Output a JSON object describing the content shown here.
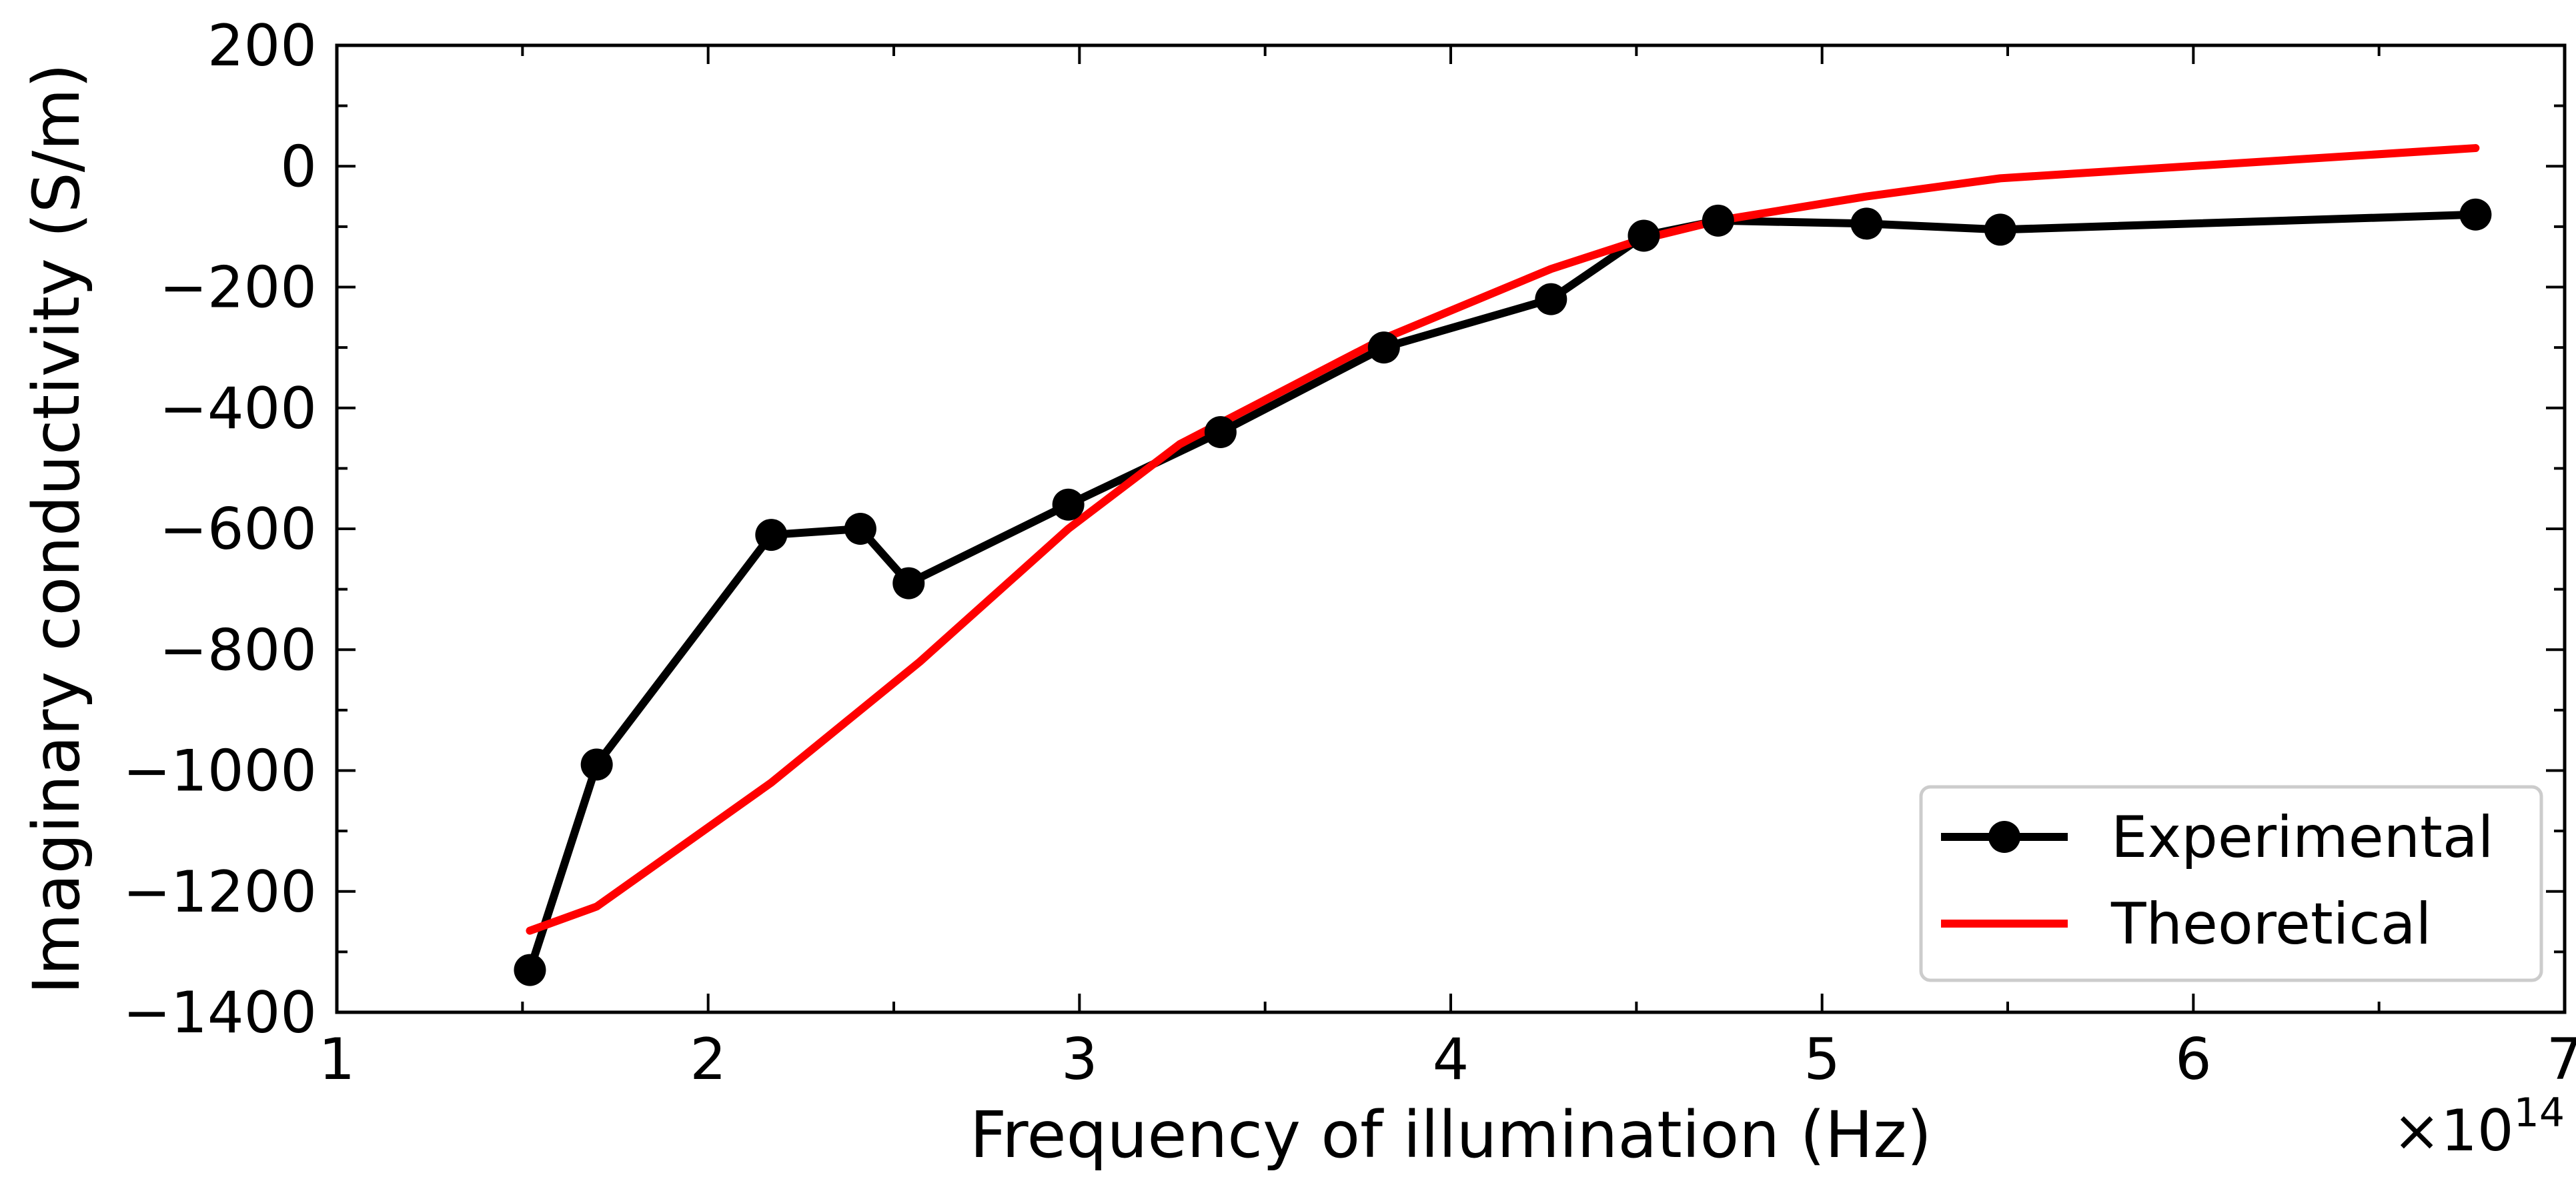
{
  "chart_data": {
    "type": "line",
    "xlabel": "Frequency of illumination (Hz)",
    "ylabel": "Imaginary conductivity (S/m)",
    "x_scale_label": "×10",
    "x_scale_exp": "14",
    "xlim": [
      1,
      7
    ],
    "ylim": [
      -1400,
      200
    ],
    "x_ticks": [
      1,
      2,
      3,
      4,
      5,
      6,
      7
    ],
    "x_tick_labels": [
      "1",
      "2",
      "3",
      "4",
      "5",
      "6",
      "7"
    ],
    "y_ticks": [
      200,
      0,
      -200,
      -400,
      -600,
      -800,
      -1000,
      -1200,
      -1400
    ],
    "y_tick_labels": [
      "200",
      "0",
      "−200",
      "−400",
      "−600",
      "−800",
      "−1000",
      "−1200",
      "−1400"
    ],
    "grid": false,
    "legend_position": "bottom-right",
    "series": [
      {
        "name": "Experimental",
        "color": "#000000",
        "marker": "circle",
        "x": [
          1.52,
          1.7,
          2.17,
          2.41,
          2.54,
          2.97,
          3.38,
          3.82,
          4.27,
          4.52,
          4.72,
          5.12,
          5.48,
          6.76
        ],
        "y": [
          -1330,
          -990,
          -610,
          -600,
          -690,
          -560,
          -440,
          -300,
          -220,
          -115,
          -90,
          -95,
          -105,
          -80
        ]
      },
      {
        "name": "Theoretical",
        "color": "#ff0000",
        "marker": "none",
        "x": [
          1.52,
          1.7,
          2.17,
          2.57,
          2.97,
          3.27,
          3.82,
          4.27,
          4.52,
          4.72,
          5.12,
          5.48,
          6.76
        ],
        "y": [
          -1265,
          -1225,
          -1020,
          -820,
          -600,
          -460,
          -285,
          -170,
          -120,
          -90,
          -50,
          -20,
          30
        ]
      }
    ]
  }
}
